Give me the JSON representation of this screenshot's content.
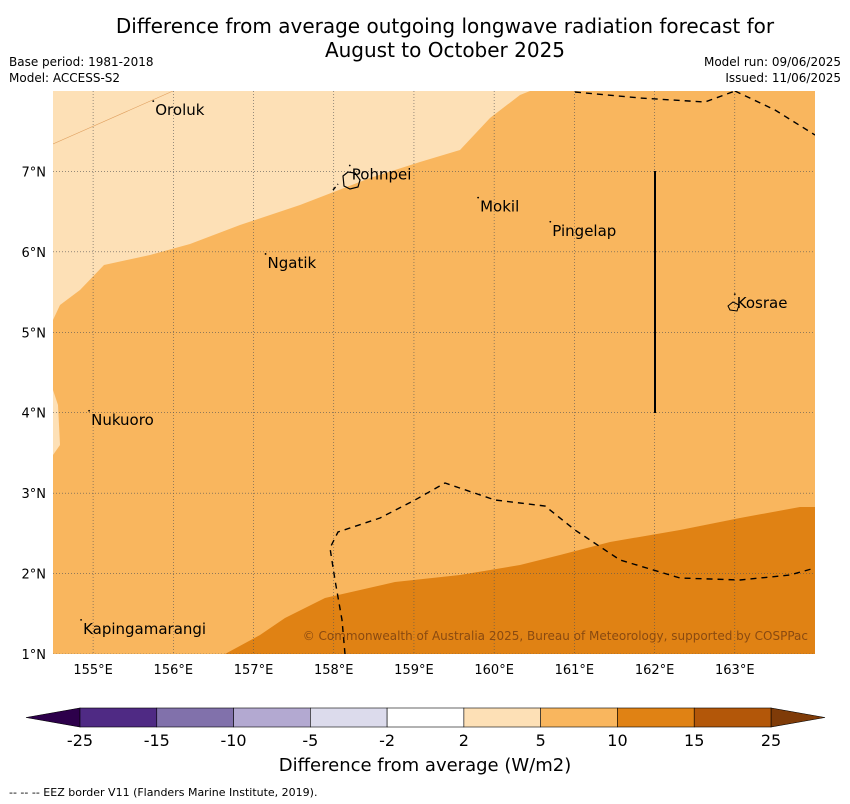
{
  "title": {
    "line1": "Difference from average outgoing longwave radiation forecast for",
    "line2": "August to October 2025"
  },
  "meta": {
    "base_period": "Base period: 1981-2018",
    "model": "Model: ACCESS-S2",
    "model_run": "Model run: 09/06/2025",
    "issued": "Issued: 11/06/2025"
  },
  "axes": {
    "lon_ticks": [
      "155°E",
      "156°E",
      "157°E",
      "158°E",
      "159°E",
      "160°E",
      "161°E",
      "162°E",
      "163°E"
    ],
    "lon_values": [
      155,
      156,
      157,
      158,
      159,
      160,
      161,
      162,
      163
    ],
    "lat_ticks": [
      "1°N",
      "2°N",
      "3°N",
      "4°N",
      "5°N",
      "6°N",
      "7°N"
    ],
    "lat_values": [
      1,
      2,
      3,
      4,
      5,
      6,
      7
    ],
    "lon_range": [
      154.5,
      164
    ],
    "lat_range": [
      1,
      8
    ]
  },
  "places": [
    {
      "name": "Oroluk",
      "lon": 155.75,
      "lat": 7.7
    },
    {
      "name": "Pohnpei",
      "lon": 158.2,
      "lat": 6.9
    },
    {
      "name": "Mokil",
      "lon": 159.8,
      "lat": 6.5
    },
    {
      "name": "Pingelap",
      "lon": 160.7,
      "lat": 6.2
    },
    {
      "name": "Ngatik",
      "lon": 157.15,
      "lat": 5.8
    },
    {
      "name": "Kosrae",
      "lon": 163.0,
      "lat": 5.3
    },
    {
      "name": "Nukuoro",
      "lon": 154.95,
      "lat": 3.85
    },
    {
      "name": "Kapingamarangi",
      "lon": 154.85,
      "lat": 1.25
    }
  ],
  "copyright": "© Commonwealth of Australia 2025, Bureau of Meteorology, supported by COSPPac",
  "colorbar": {
    "title": "Difference from average (W/m2)",
    "labels": [
      "-25",
      "-15",
      "-10",
      "-5",
      "-2",
      "2",
      "5",
      "10",
      "15",
      "25"
    ],
    "colors": [
      "#4f2a84",
      "#8171ab",
      "#b3a9d1",
      "#dcdbec",
      "#ffffff",
      "#fde0b6",
      "#f9b65e",
      "#e08214",
      "#b35709"
    ],
    "under_color": "#2d004b",
    "over_color": "#7f3b08"
  },
  "footer": "--  --  -- EEZ border V11 (Flanders Marine Institute, 2019)."
}
